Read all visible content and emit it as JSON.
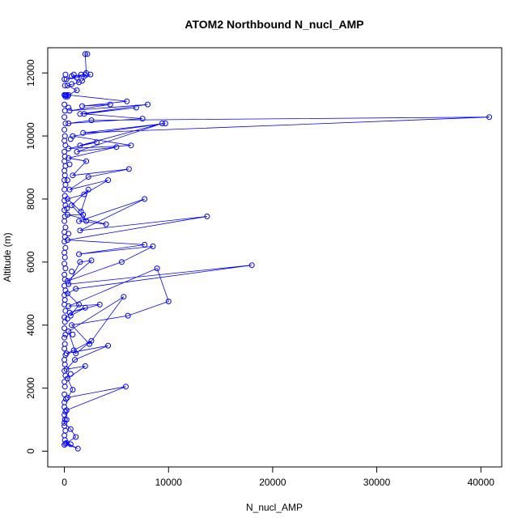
{
  "chart_data": {
    "type": "scatter",
    "title": "ATOM2 Northbound N_nucl_AMP",
    "xlabel": "N_nucl_AMP",
    "ylabel": "Altitude (m)",
    "xlim": [
      -1600,
      42000
    ],
    "ylim": [
      -500,
      12800
    ],
    "xticks": [
      0,
      10000,
      20000,
      30000,
      40000
    ],
    "yticks": [
      0,
      2000,
      4000,
      6000,
      8000,
      10000,
      12000
    ],
    "xtick_labels": [
      "0",
      "10000",
      "20000",
      "30000",
      "40000"
    ],
    "ytick_labels": [
      "0",
      "2000",
      "4000",
      "6000",
      "8000",
      "10000",
      "12000"
    ],
    "color": "#0000ff",
    "series": [
      {
        "style": "line+points",
        "points": [
          [
            600,
            220
          ],
          [
            100,
            240
          ],
          [
            1300,
            80
          ],
          [
            200,
            260
          ],
          [
            1100,
            450
          ],
          [
            600,
            700
          ],
          [
            0,
            900
          ],
          [
            200,
            1300
          ],
          [
            5900,
            2050
          ],
          [
            300,
            1700
          ],
          [
            800,
            1950
          ],
          [
            300,
            2300
          ],
          [
            2000,
            2700
          ],
          [
            200,
            2600
          ],
          [
            1000,
            2900
          ],
          [
            4200,
            3350
          ],
          [
            200,
            3100
          ],
          [
            900,
            3200
          ],
          [
            2600,
            3500
          ],
          [
            1100,
            3100
          ],
          [
            400,
            3800
          ],
          [
            5700,
            4900
          ],
          [
            2400,
            3400
          ],
          [
            700,
            4000
          ],
          [
            6100,
            4300
          ],
          [
            10000,
            4750
          ],
          [
            8900,
            5800
          ],
          [
            400,
            4600
          ],
          [
            3400,
            4650
          ],
          [
            500,
            4400
          ],
          [
            2000,
            4550
          ],
          [
            600,
            4300
          ],
          [
            1400,
            4650
          ],
          [
            300,
            5000
          ],
          [
            1100,
            5150
          ],
          [
            18000,
            5900
          ],
          [
            400,
            5300
          ],
          [
            1500,
            6000
          ],
          [
            2600,
            6050
          ],
          [
            300,
            5400
          ],
          [
            5500,
            6000
          ],
          [
            8500,
            6500
          ],
          [
            1400,
            6250
          ],
          [
            7700,
            6550
          ],
          [
            300,
            6700
          ],
          [
            13700,
            7450
          ],
          [
            1500,
            7000
          ],
          [
            7700,
            8000
          ],
          [
            1400,
            7300
          ],
          [
            4000,
            7200
          ],
          [
            300,
            7500
          ],
          [
            1800,
            7500
          ],
          [
            2100,
            7300
          ],
          [
            700,
            7800
          ],
          [
            2300,
            8300
          ],
          [
            1600,
            7600
          ],
          [
            300,
            8000
          ],
          [
            1900,
            8150
          ],
          [
            4200,
            8600
          ],
          [
            500,
            8300
          ],
          [
            2300,
            8700
          ],
          [
            6200,
            8950
          ],
          [
            800,
            8750
          ],
          [
            2100,
            9200
          ],
          [
            400,
            9300
          ],
          [
            5000,
            9650
          ],
          [
            1200,
            9500
          ],
          [
            9400,
            10400
          ],
          [
            1500,
            9700
          ],
          [
            3100,
            9800
          ],
          [
            400,
            9600
          ],
          [
            6400,
            9700
          ],
          [
            800,
            10000
          ],
          [
            9700,
            10400
          ],
          [
            1800,
            10100
          ],
          [
            40800,
            10600
          ],
          [
            2600,
            10500
          ],
          [
            400,
            10400
          ],
          [
            7500,
            10550
          ],
          [
            1900,
            10700
          ],
          [
            6900,
            10900
          ],
          [
            1500,
            10700
          ],
          [
            8000,
            11000
          ],
          [
            500,
            10800
          ],
          [
            4400,
            11000
          ],
          [
            1700,
            10950
          ],
          [
            6000,
            11100
          ],
          [
            400,
            11300
          ],
          [
            1200,
            11450
          ],
          [
            300,
            11600
          ],
          [
            1400,
            11700
          ],
          [
            700,
            11900
          ],
          [
            2000,
            11950
          ],
          [
            200,
            11800
          ],
          [
            1200,
            11850
          ],
          [
            2500,
            11950
          ],
          [
            1700,
            11750
          ],
          [
            2100,
            12000
          ],
          [
            2000,
            12600
          ],
          [
            2200,
            12600
          ]
        ]
      },
      {
        "style": "points",
        "points": [
          [
            0,
            200
          ],
          [
            50,
            350
          ],
          [
            0,
            500
          ],
          [
            100,
            650
          ],
          [
            0,
            800
          ],
          [
            50,
            1000
          ],
          [
            0,
            1150
          ],
          [
            100,
            1250
          ],
          [
            0,
            1400
          ],
          [
            0,
            1550
          ],
          [
            150,
            1650
          ],
          [
            0,
            1800
          ],
          [
            50,
            2050
          ],
          [
            0,
            2200
          ],
          [
            100,
            2400
          ],
          [
            0,
            2550
          ],
          [
            50,
            2750
          ],
          [
            0,
            2900
          ],
          [
            100,
            3050
          ],
          [
            0,
            3250
          ],
          [
            50,
            3400
          ],
          [
            0,
            3600
          ],
          [
            100,
            3700
          ],
          [
            0,
            3900
          ],
          [
            50,
            4100
          ],
          [
            0,
            4250
          ],
          [
            100,
            4450
          ],
          [
            0,
            4650
          ],
          [
            50,
            4800
          ],
          [
            0,
            4950
          ],
          [
            100,
            5100
          ],
          [
            0,
            5250
          ],
          [
            50,
            5450
          ],
          [
            0,
            5600
          ],
          [
            100,
            5800
          ],
          [
            0,
            5950
          ],
          [
            50,
            6150
          ],
          [
            0,
            6300
          ],
          [
            100,
            6450
          ],
          [
            0,
            6650
          ],
          [
            50,
            6800
          ],
          [
            0,
            6950
          ],
          [
            100,
            7100
          ],
          [
            0,
            7300
          ],
          [
            50,
            7450
          ],
          [
            0,
            7650
          ],
          [
            100,
            7800
          ],
          [
            0,
            7950
          ],
          [
            50,
            8100
          ],
          [
            0,
            8300
          ],
          [
            100,
            8450
          ],
          [
            0,
            8600
          ],
          [
            50,
            8750
          ],
          [
            0,
            8900
          ],
          [
            100,
            9050
          ],
          [
            0,
            9200
          ],
          [
            50,
            9350
          ],
          [
            0,
            9500
          ],
          [
            100,
            9700
          ],
          [
            0,
            9850
          ],
          [
            50,
            10000
          ],
          [
            0,
            10200
          ],
          [
            100,
            10400
          ],
          [
            0,
            10600
          ],
          [
            50,
            10800
          ],
          [
            0,
            11000
          ],
          [
            100,
            11250
          ],
          [
            0,
            11300
          ],
          [
            50,
            11600
          ],
          [
            0,
            11800
          ],
          [
            100,
            11950
          ],
          [
            300,
            8600
          ],
          [
            400,
            6900
          ],
          [
            300,
            4200
          ],
          [
            500,
            9100
          ],
          [
            600,
            2450
          ],
          [
            200,
            1000
          ],
          [
            700,
            5700
          ],
          [
            400,
            10900
          ],
          [
            800,
            3700
          ],
          [
            250,
            7700
          ],
          [
            600,
            9900
          ],
          [
            300,
            11250
          ],
          [
            200,
            11300
          ],
          [
            100,
            11300
          ],
          [
            900,
            11950
          ],
          [
            1600,
            11950
          ],
          [
            700,
            11650
          ]
        ]
      }
    ]
  }
}
